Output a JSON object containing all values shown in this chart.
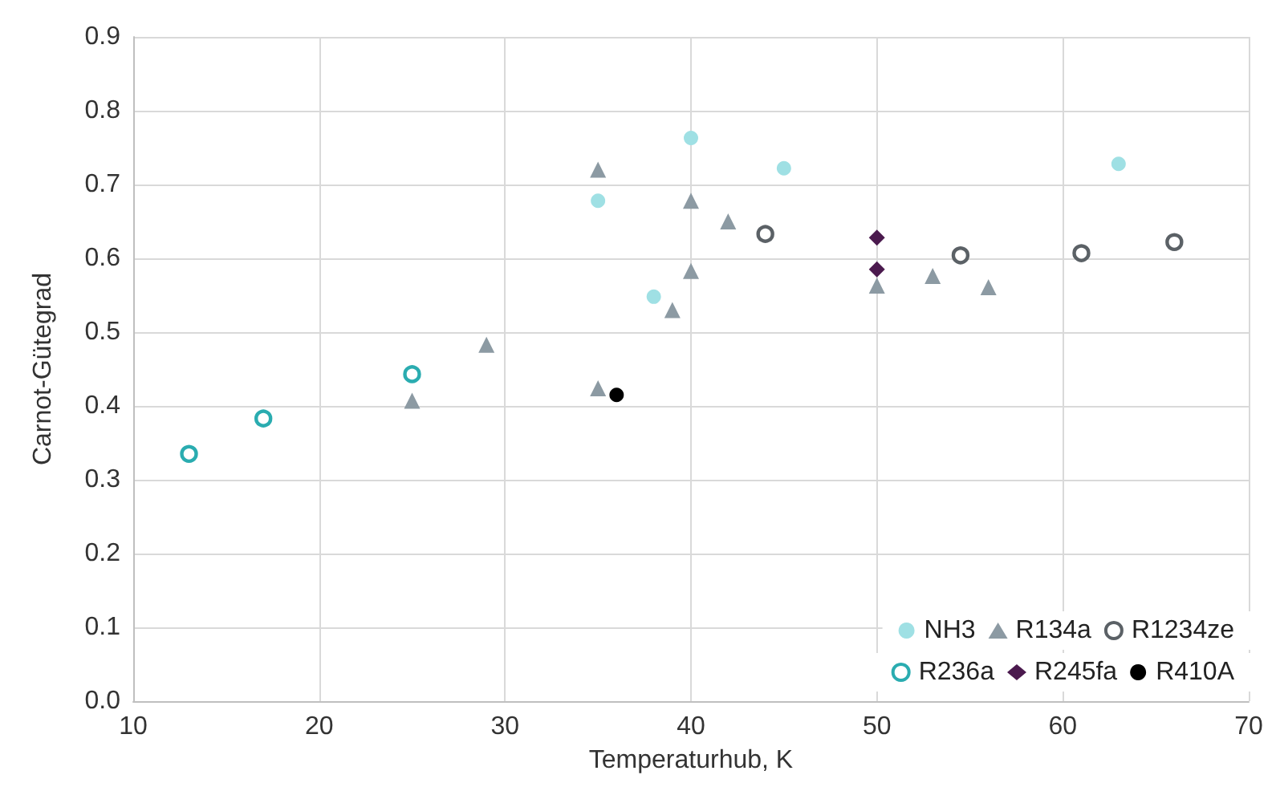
{
  "chart_data": {
    "type": "scatter",
    "xlabel": "Temperaturhub, K",
    "ylabel": "Carnot-Gütegrad",
    "xlim": [
      10,
      70
    ],
    "xticks": [
      10,
      20,
      30,
      40,
      50,
      60,
      70
    ],
    "ylim": [
      0,
      0.9
    ],
    "yticks": [
      {
        "value": 0,
        "label": "0.0"
      },
      0.1,
      0.2,
      0.3,
      0.4,
      0.5,
      0.6,
      0.7,
      0.8,
      0.9
    ],
    "grid": true,
    "legend": "bottom right",
    "series": [
      {
        "name": "NH3",
        "color": "#9fe0e4",
        "marker": "circle",
        "x": [
          35,
          40,
          45,
          38,
          63
        ],
        "values": [
          0.678,
          0.763,
          0.722,
          0.548,
          0.728
        ]
      },
      {
        "name": "R134a",
        "color": "#8c9aa3",
        "marker": "triangle",
        "x": [
          35,
          40,
          42,
          40,
          39,
          29,
          25,
          35,
          50,
          53,
          56
        ],
        "values": [
          0.72,
          0.678,
          0.65,
          0.583,
          0.53,
          0.483,
          0.407,
          0.424,
          0.563,
          0.576,
          0.561
        ]
      },
      {
        "name": "R1234ze",
        "color": "#5b6166",
        "marker": "circle-open",
        "x": [
          44,
          54.5,
          61,
          66
        ],
        "values": [
          0.633,
          0.604,
          0.607,
          0.622
        ]
      },
      {
        "name": "R236a",
        "color": "#2aacb0",
        "marker": "circle-open",
        "x": [
          13,
          17,
          25
        ],
        "values": [
          0.335,
          0.383,
          0.443
        ]
      },
      {
        "name": "R245fa",
        "color": "#4b1a4e",
        "marker": "diamond",
        "x": [
          50,
          50
        ],
        "values": [
          0.628,
          0.585
        ]
      },
      {
        "name": "R410A",
        "color": "#000000",
        "marker": "circle",
        "x": [
          36
        ],
        "values": [
          0.415
        ]
      }
    ]
  }
}
